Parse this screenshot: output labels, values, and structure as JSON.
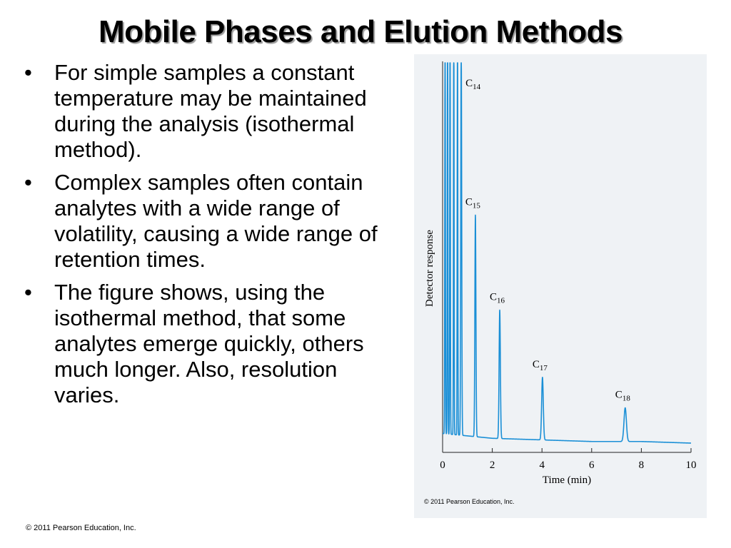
{
  "slide": {
    "title": "Mobile Phases and Elution Methods",
    "bullets": [
      "For simple samples a constant temperature may be maintained during the analysis (isothermal method).",
      "Complex samples often contain analytes with a wide range of volatility, causing a wide range of retention times.",
      "The figure shows, using the isothermal method, that some analytes emerge quickly, others much longer. Also, resolution varies."
    ],
    "bullet_glyph": "•",
    "footer": "© 2011 Pearson Education, Inc."
  },
  "chart_data": {
    "type": "line",
    "title": "",
    "xlabel": "Time (min)",
    "ylabel": "Detector response",
    "xlim": [
      0,
      10
    ],
    "xticks": [
      0,
      2,
      4,
      6,
      8,
      10
    ],
    "xtick_labels": [
      "0",
      "2",
      "4",
      "6",
      "8",
      "10"
    ],
    "grid": false,
    "line_color": "#1a8fd6",
    "credit": "© 2011 Pearson Education, Inc.",
    "peaks": [
      {
        "label": "C",
        "sub": "14",
        "x": 0.75,
        "height": 1.2
      },
      {
        "label": "C",
        "sub": "15",
        "x": 1.32,
        "height": 0.69
      },
      {
        "label": "C",
        "sub": "16",
        "x": 2.3,
        "height": 0.4
      },
      {
        "label": "C",
        "sub": "17",
        "x": 4.02,
        "height": 0.195
      },
      {
        "label": "C",
        "sub": "18",
        "x": 7.35,
        "height": 0.105
      }
    ],
    "early_peaks_x": [
      0.1,
      0.2,
      0.3,
      0.45,
      0.6
    ],
    "baseline": [
      [
        0,
        0.03
      ],
      [
        2,
        0.015
      ],
      [
        4,
        0.01
      ],
      [
        6,
        0.005
      ],
      [
        8,
        0.005
      ],
      [
        10,
        0.0
      ]
    ]
  }
}
